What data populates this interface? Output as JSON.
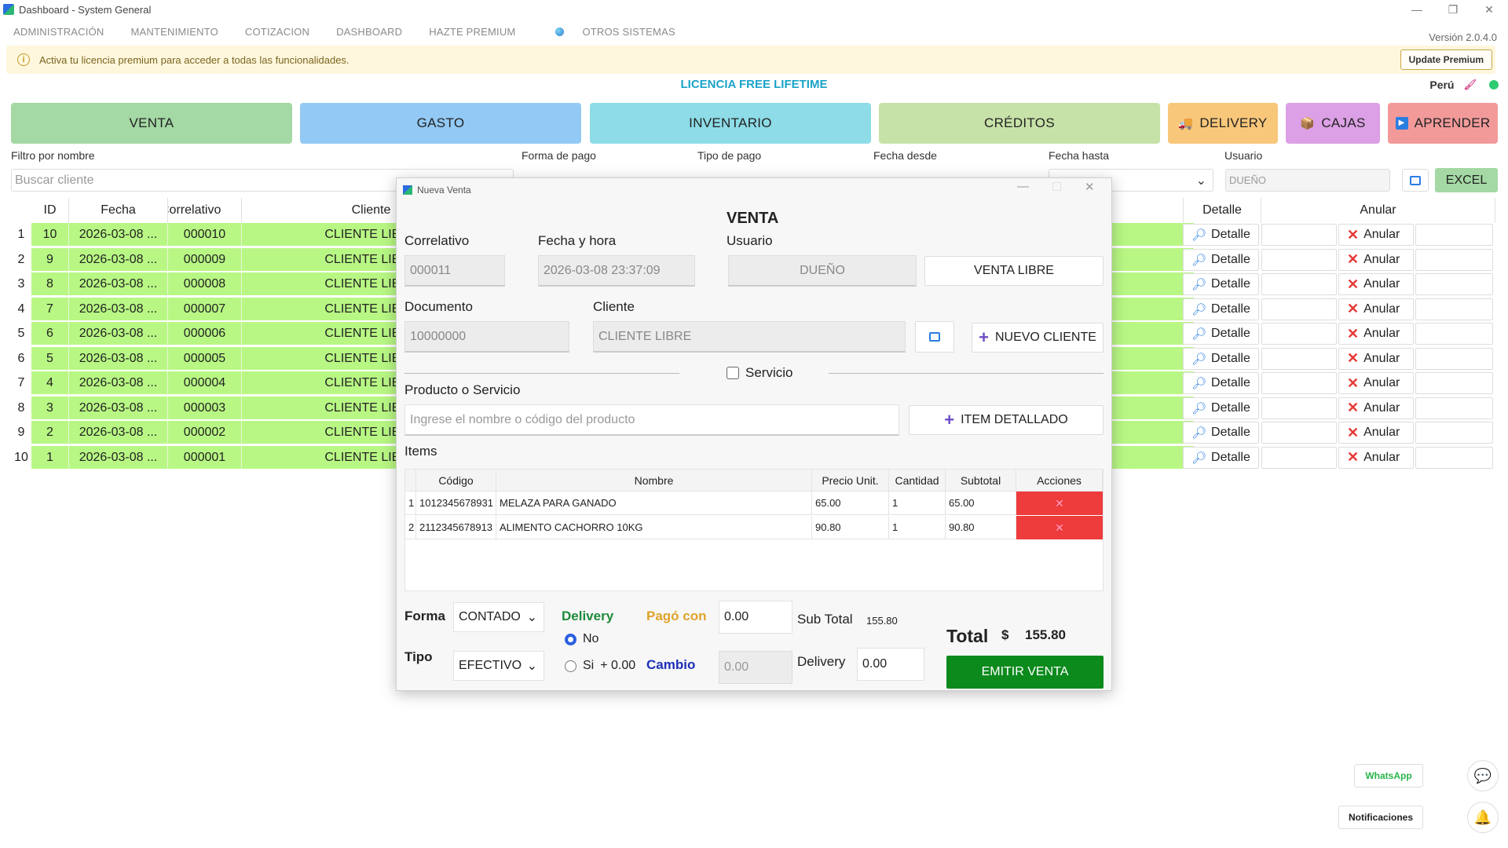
{
  "window": {
    "title": "Dashboard - System General"
  },
  "menu": [
    "ADMINISTRACIÓN",
    "MANTENIMIENTO",
    "COTIZACION",
    "DASHBOARD",
    "HAZTE PREMIUM",
    "OTROS SISTEMAS"
  ],
  "version": "Versión 2.0.4.0",
  "banner": {
    "text": "Activa tu licencia premium para acceder a todas las funcionalidades.",
    "button": "Update Premium"
  },
  "license": "LICENCIA FREE LIFETIME",
  "country": "Perú",
  "big_buttons": [
    {
      "label": "VENTA",
      "color": "#a4d8a4"
    },
    {
      "label": "GASTO",
      "color": "#93c9f5"
    },
    {
      "label": "INVENTARIO",
      "color": "#8ddce8"
    },
    {
      "label": "CRÉDITOS",
      "color": "#c7e2a8"
    },
    {
      "label": "DELIVERY",
      "color": "#f9c77a",
      "icon": "truck-icon"
    },
    {
      "label": "CAJAS",
      "color": "#dca0e6",
      "icon": "box-icon"
    },
    {
      "label": "APRENDER",
      "color": "#f29a9a",
      "icon": "play-icon"
    }
  ],
  "filters": {
    "nombre_label": "Filtro por nombre",
    "nombre_placeholder": "Buscar cliente",
    "forma_label": "Forma de pago",
    "tipo_label": "Tipo de pago",
    "desde_label": "Fecha desde",
    "hasta_label": "Fecha hasta",
    "usuario_label": "Usuario",
    "usuario_value": "DUEÑO",
    "excel": "EXCEL"
  },
  "table": {
    "headers": {
      "id": "ID",
      "fecha": "Fecha",
      "correlativo": "Correlativo",
      "cliente": "Cliente",
      "detalle": "Detalle",
      "anular": "Anular"
    },
    "detalle_label": "Detalle",
    "anular_label": "Anular",
    "rows": [
      {
        "n": "1",
        "id": "10",
        "fecha": "2026-03-08 ...",
        "corr": "000010",
        "cliente": "CLIENTE LIBRE"
      },
      {
        "n": "2",
        "id": "9",
        "fecha": "2026-03-08 ...",
        "corr": "000009",
        "cliente": "CLIENTE LIBRE"
      },
      {
        "n": "3",
        "id": "8",
        "fecha": "2026-03-08 ...",
        "corr": "000008",
        "cliente": "CLIENTE LIBRE"
      },
      {
        "n": "4",
        "id": "7",
        "fecha": "2026-03-08 ...",
        "corr": "000007",
        "cliente": "CLIENTE LIBRE"
      },
      {
        "n": "5",
        "id": "6",
        "fecha": "2026-03-08 ...",
        "corr": "000006",
        "cliente": "CLIENTE LIBRE"
      },
      {
        "n": "6",
        "id": "5",
        "fecha": "2026-03-08 ...",
        "corr": "000005",
        "cliente": "CLIENTE LIBRE"
      },
      {
        "n": "7",
        "id": "4",
        "fecha": "2026-03-08 ...",
        "corr": "000004",
        "cliente": "CLIENTE LIBRE"
      },
      {
        "n": "8",
        "id": "3",
        "fecha": "2026-03-08 ...",
        "corr": "000003",
        "cliente": "CLIENTE LIBRE"
      },
      {
        "n": "9",
        "id": "2",
        "fecha": "2026-03-08 ...",
        "corr": "000002",
        "cliente": "CLIENTE LIBRE"
      },
      {
        "n": "10",
        "id": "1",
        "fecha": "2026-03-08 ...",
        "corr": "000001",
        "cliente": "CLIENTE LIBRE"
      }
    ]
  },
  "modal": {
    "window_title": "Nueva Venta",
    "heading": "VENTA",
    "correlativo_label": "Correlativo",
    "correlativo_value": "000011",
    "fecha_label": "Fecha y hora",
    "fecha_value": "2026-03-08 23:37:09",
    "usuario_label": "Usuario",
    "usuario_value": "DUEÑO",
    "venta_libre": "VENTA LIBRE",
    "documento_label": "Documento",
    "documento_value": "10000000",
    "cliente_label": "Cliente",
    "cliente_value": "CLIENTE LIBRE",
    "nuevo_cliente": "NUEVO CLIENTE",
    "servicio": "Servicio",
    "producto_label": "Producto o Servicio",
    "producto_placeholder": "Ingrese el nombre o código del producto",
    "item_detallado": "ITEM DETALLADO",
    "items_label": "Items",
    "items_headers": {
      "codigo": "Código",
      "nombre": "Nombre",
      "precio": "Precio Unit.",
      "cantidad": "Cantidad",
      "subtotal": "Subtotal",
      "acciones": "Acciones"
    },
    "items": [
      {
        "n": "1",
        "codigo": "1012345678931",
        "nombre": "MELAZA PARA GANADO",
        "precio": "65.00",
        "cantidad": "1",
        "subtotal": "65.00"
      },
      {
        "n": "2",
        "codigo": "2112345678913",
        "nombre": "ALIMENTO CACHORRO 10KG",
        "precio": "90.80",
        "cantidad": "1",
        "subtotal": "90.80"
      }
    ],
    "forma_label": "Forma",
    "forma_value": "CONTADO",
    "tipo_label": "Tipo",
    "tipo_value": "EFECTIVO",
    "delivery_label": "Delivery",
    "delivery_no": "No",
    "delivery_si": "Si",
    "delivery_si_amount": "+ 0.00",
    "pago_con_label": "Pagó con",
    "pago_con_value": "0.00",
    "cambio_label": "Cambio",
    "cambio_value": "0.00",
    "subtotal_label": "Sub Total",
    "subtotal_value": "155.80",
    "delivery_amount_label": "Delivery",
    "delivery_amount_value": "0.00",
    "total_label": "Total",
    "total_currency": "$",
    "total_value": "155.80",
    "emitir": "EMITIR VENTA"
  },
  "corner": {
    "whatsapp": "WhatsApp",
    "notificaciones": "Notificaciones"
  }
}
